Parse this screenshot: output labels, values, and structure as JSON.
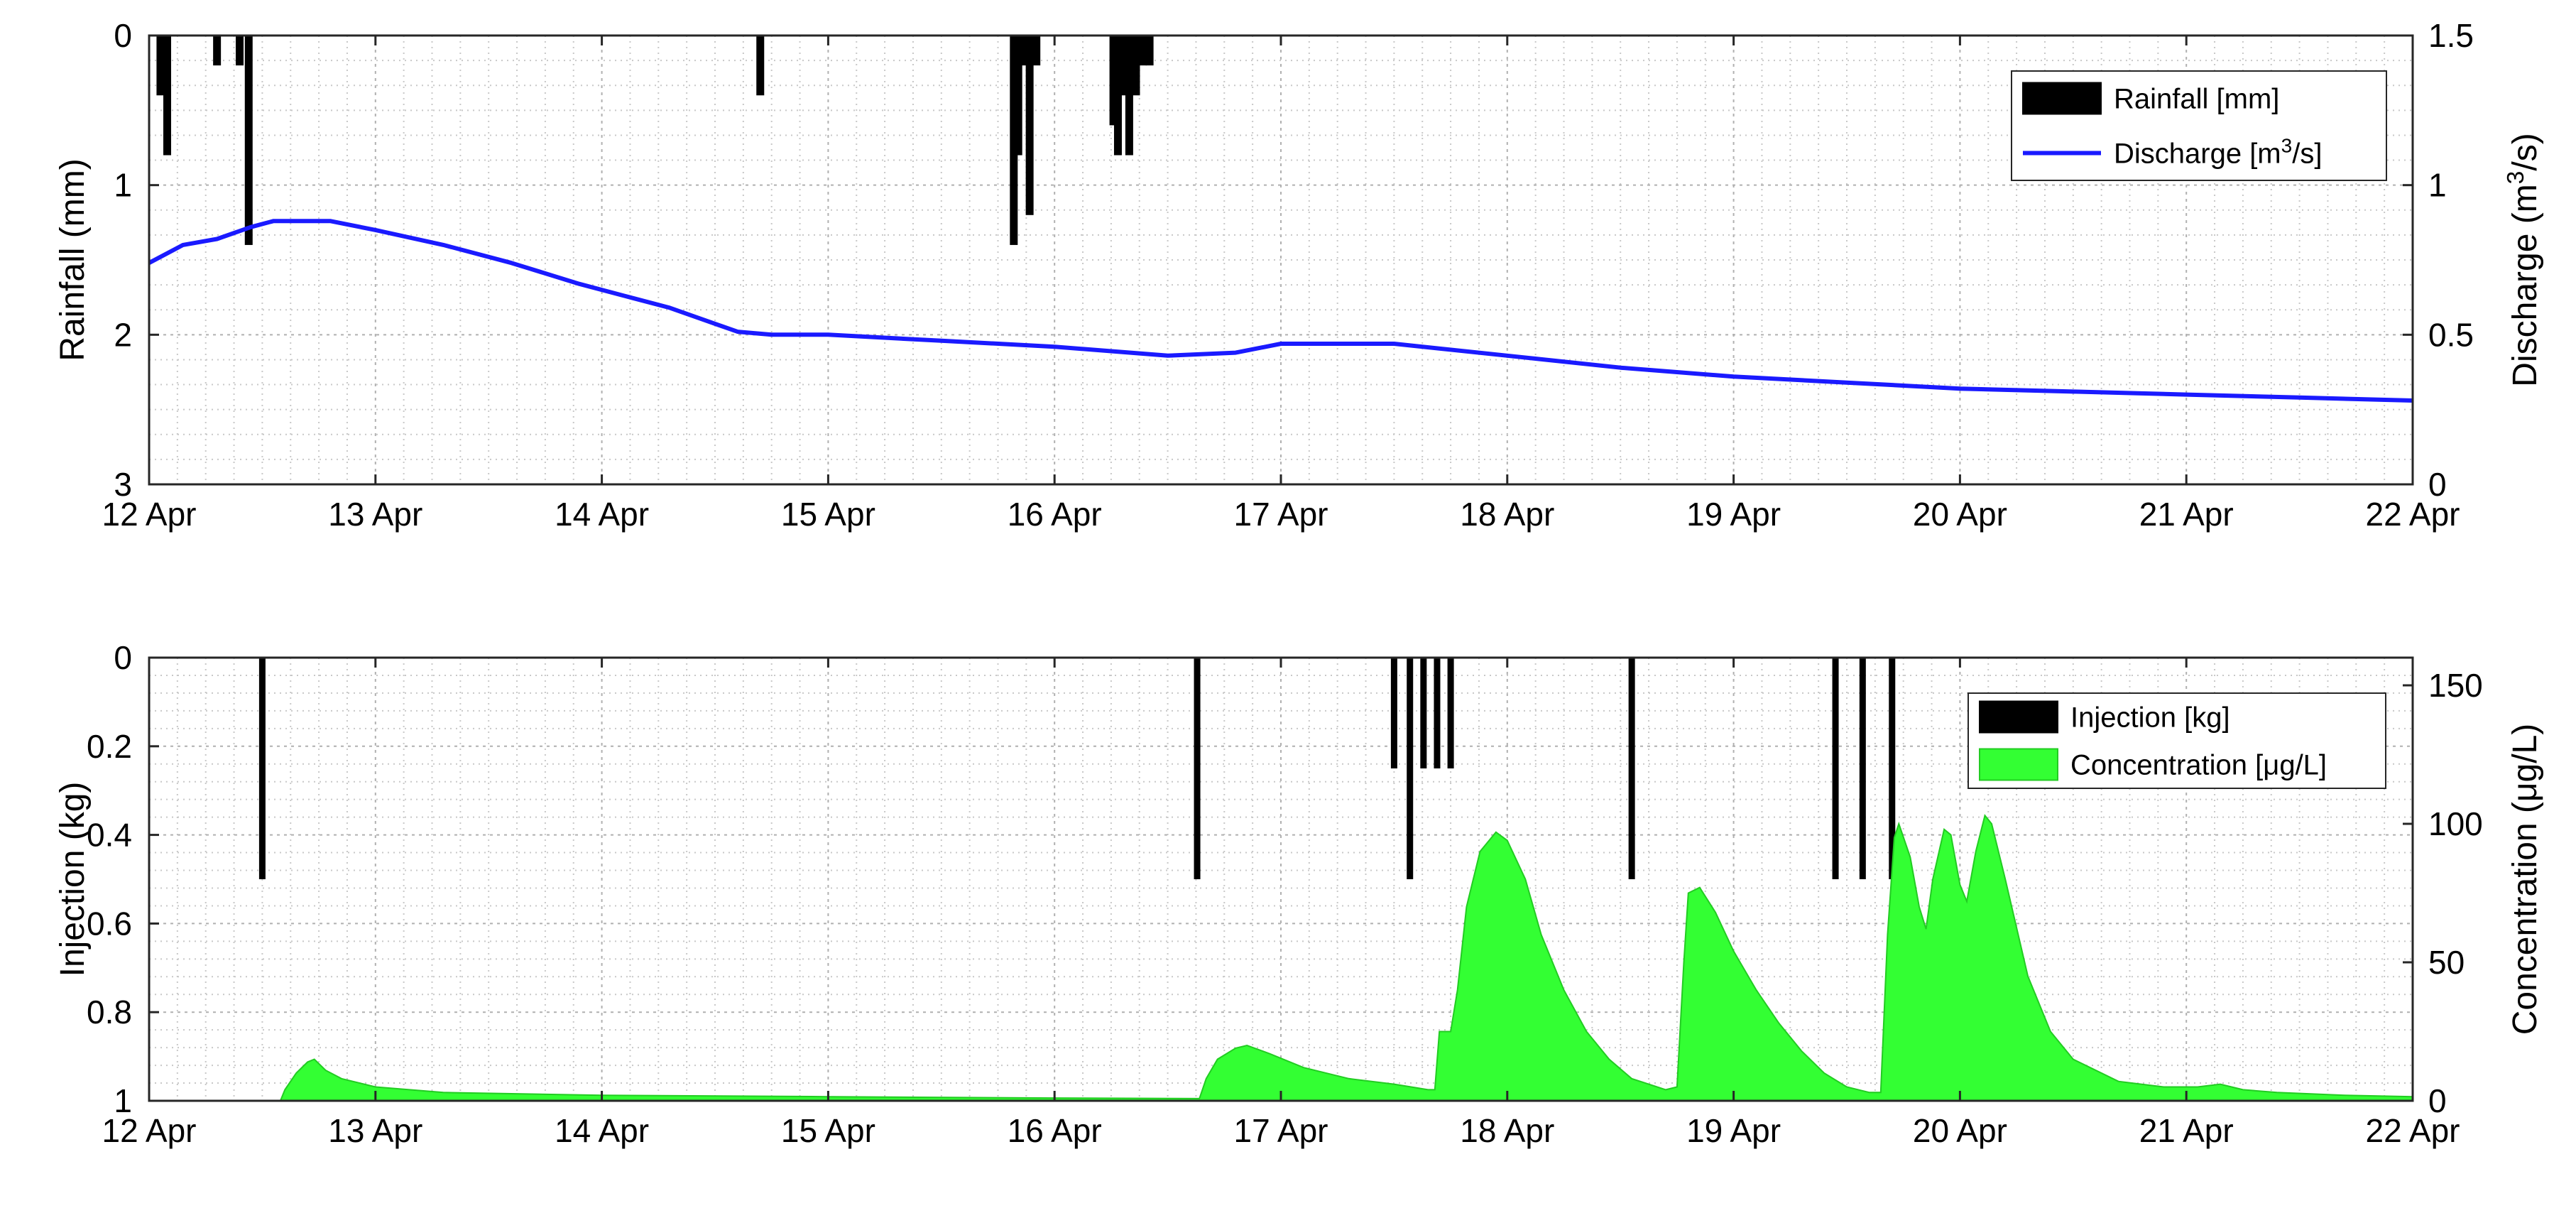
{
  "chart_data": [
    {
      "type": "bar+line",
      "x_ticks": [
        "12 Apr",
        "13 Apr",
        "14 Apr",
        "15 Apr",
        "16 Apr",
        "17 Apr",
        "18 Apr",
        "19 Apr",
        "20 Apr",
        "21 Apr",
        "22 Apr"
      ],
      "xlim": [
        0,
        10
      ],
      "y_left_label": "Rainfall (mm)",
      "y_left_lim": [
        0,
        3
      ],
      "y_left_reversed": true,
      "y_left_ticks": [
        "0",
        "1",
        "2",
        "3"
      ],
      "y_right_label": "Discharge (m³/s)",
      "y_right_label_parts": {
        "prefix": "Discharge (m",
        "sup": "3",
        "suffix": "/s)"
      },
      "y_right_lim": [
        0,
        1.5
      ],
      "y_right_ticks": [
        "0",
        "0.5",
        "1",
        "1.5"
      ],
      "grid": true,
      "legend_position": "top-right",
      "legend": [
        {
          "label": "Rainfall [mm]",
          "color": "#000000",
          "kind": "bar"
        },
        {
          "label": "Discharge [m3/s]",
          "label_parts": {
            "prefix": "Discharge [m",
            "sup": "3",
            "suffix": "/s]"
          },
          "color": "#1a1aff",
          "kind": "line"
        }
      ],
      "series": [
        {
          "name": "Rainfall [mm]",
          "kind": "bar",
          "axis": "left",
          "color": "#000000",
          "points": [
            {
              "x": 0.05,
              "y": 0.4
            },
            {
              "x": 0.08,
              "y": 0.8
            },
            {
              "x": 0.3,
              "y": 0.2
            },
            {
              "x": 0.4,
              "y": 0.2
            },
            {
              "x": 0.44,
              "y": 1.4
            },
            {
              "x": 2.7,
              "y": 0.4
            },
            {
              "x": 3.82,
              "y": 1.4
            },
            {
              "x": 3.84,
              "y": 0.8
            },
            {
              "x": 3.87,
              "y": 0.2
            },
            {
              "x": 3.89,
              "y": 1.2
            },
            {
              "x": 3.92,
              "y": 0.2
            },
            {
              "x": 4.26,
              "y": 0.6
            },
            {
              "x": 4.28,
              "y": 0.8
            },
            {
              "x": 4.3,
              "y": 0.4
            },
            {
              "x": 4.33,
              "y": 0.8
            },
            {
              "x": 4.36,
              "y": 0.4
            },
            {
              "x": 4.39,
              "y": 0.2
            },
            {
              "x": 4.42,
              "y": 0.2
            }
          ]
        },
        {
          "name": "Discharge [m3/s]",
          "kind": "line",
          "axis": "right",
          "color": "#1a1aff",
          "points": [
            [
              0,
              0.74
            ],
            [
              0.15,
              0.8
            ],
            [
              0.3,
              0.82
            ],
            [
              0.45,
              0.86
            ],
            [
              0.55,
              0.88
            ],
            [
              0.8,
              0.88
            ],
            [
              1.0,
              0.85
            ],
            [
              1.3,
              0.8
            ],
            [
              1.6,
              0.74
            ],
            [
              1.9,
              0.67
            ],
            [
              2.1,
              0.63
            ],
            [
              2.3,
              0.59
            ],
            [
              2.45,
              0.55
            ],
            [
              2.6,
              0.51
            ],
            [
              2.75,
              0.5
            ],
            [
              3.0,
              0.5
            ],
            [
              3.5,
              0.48
            ],
            [
              4.0,
              0.46
            ],
            [
              4.5,
              0.43
            ],
            [
              4.8,
              0.44
            ],
            [
              5.0,
              0.47
            ],
            [
              5.5,
              0.47
            ],
            [
              6.0,
              0.43
            ],
            [
              6.5,
              0.39
            ],
            [
              7.0,
              0.36
            ],
            [
              7.5,
              0.34
            ],
            [
              8.0,
              0.32
            ],
            [
              8.5,
              0.31
            ],
            [
              9.0,
              0.3
            ],
            [
              9.5,
              0.29
            ],
            [
              10.0,
              0.28
            ]
          ]
        }
      ]
    },
    {
      "type": "bar+area",
      "x_ticks": [
        "12 Apr",
        "13 Apr",
        "14 Apr",
        "15 Apr",
        "16 Apr",
        "17 Apr",
        "18 Apr",
        "19 Apr",
        "20 Apr",
        "21 Apr",
        "22 Apr"
      ],
      "xlim": [
        0,
        10
      ],
      "y_left_label": "Injection (kg)",
      "y_left_lim": [
        0,
        1
      ],
      "y_left_reversed": true,
      "y_left_ticks": [
        "0",
        "0.2",
        "0.4",
        "0.6",
        "0.8",
        "1"
      ],
      "y_right_label": "Concentration (μg/L)",
      "y_right_lim": [
        0,
        160
      ],
      "y_right_ticks": [
        "0",
        "50",
        "100",
        "150"
      ],
      "grid": true,
      "legend_position": "top-right",
      "legend": [
        {
          "label": "Injection [kg]",
          "color": "#000000",
          "kind": "bar"
        },
        {
          "label": "Concentration [μg/L]",
          "color": "#33ff33",
          "kind": "area"
        }
      ],
      "series": [
        {
          "name": "Injection [kg]",
          "kind": "bar",
          "axis": "left",
          "color": "#000000",
          "points": [
            {
              "x": 0.5,
              "y": 0.5
            },
            {
              "x": 4.63,
              "y": 0.5
            },
            {
              "x": 5.5,
              "y": 0.25
            },
            {
              "x": 5.57,
              "y": 0.5
            },
            {
              "x": 5.63,
              "y": 0.25
            },
            {
              "x": 5.69,
              "y": 0.25
            },
            {
              "x": 5.75,
              "y": 0.25
            },
            {
              "x": 6.55,
              "y": 0.5
            },
            {
              "x": 7.45,
              "y": 0.5
            },
            {
              "x": 7.57,
              "y": 0.5
            },
            {
              "x": 7.7,
              "y": 0.5
            }
          ]
        },
        {
          "name": "Concentration [μg/L]",
          "kind": "area",
          "axis": "right",
          "color": "#33ff33",
          "points": [
            [
              0,
              0
            ],
            [
              0.58,
              0
            ],
            [
              0.6,
              4
            ],
            [
              0.65,
              10
            ],
            [
              0.7,
              14
            ],
            [
              0.73,
              15
            ],
            [
              0.78,
              11
            ],
            [
              0.85,
              8
            ],
            [
              1.0,
              5
            ],
            [
              1.3,
              3
            ],
            [
              2.0,
              2
            ],
            [
              3.0,
              1.5
            ],
            [
              4.0,
              1
            ],
            [
              4.64,
              0.8
            ],
            [
              4.67,
              8
            ],
            [
              4.72,
              15
            ],
            [
              4.8,
              19
            ],
            [
              4.85,
              20
            ],
            [
              4.95,
              17
            ],
            [
              5.1,
              12
            ],
            [
              5.3,
              8
            ],
            [
              5.5,
              6
            ],
            [
              5.65,
              4
            ],
            [
              5.68,
              4
            ],
            [
              5.7,
              25
            ],
            [
              5.75,
              25
            ],
            [
              5.78,
              40
            ],
            [
              5.82,
              70
            ],
            [
              5.88,
              90
            ],
            [
              5.95,
              97
            ],
            [
              6.0,
              94
            ],
            [
              6.08,
              80
            ],
            [
              6.15,
              60
            ],
            [
              6.25,
              40
            ],
            [
              6.35,
              25
            ],
            [
              6.45,
              15
            ],
            [
              6.55,
              8
            ],
            [
              6.7,
              4
            ],
            [
              6.75,
              5
            ],
            [
              6.78,
              50
            ],
            [
              6.8,
              75
            ],
            [
              6.85,
              77
            ],
            [
              6.92,
              68
            ],
            [
              7.0,
              54
            ],
            [
              7.1,
              40
            ],
            [
              7.2,
              28
            ],
            [
              7.3,
              18
            ],
            [
              7.4,
              10
            ],
            [
              7.5,
              5
            ],
            [
              7.6,
              3
            ],
            [
              7.65,
              3
            ],
            [
              7.68,
              60
            ],
            [
              7.71,
              95
            ],
            [
              7.73,
              100
            ],
            [
              7.78,
              88
            ],
            [
              7.82,
              70
            ],
            [
              7.85,
              62
            ],
            [
              7.88,
              80
            ],
            [
              7.93,
              98
            ],
            [
              7.96,
              96
            ],
            [
              8.0,
              78
            ],
            [
              8.03,
              72
            ],
            [
              8.07,
              90
            ],
            [
              8.11,
              103
            ],
            [
              8.14,
              100
            ],
            [
              8.2,
              80
            ],
            [
              8.3,
              45
            ],
            [
              8.4,
              25
            ],
            [
              8.5,
              15
            ],
            [
              8.7,
              7
            ],
            [
              8.9,
              5
            ],
            [
              9.05,
              5
            ],
            [
              9.15,
              6
            ],
            [
              9.25,
              4
            ],
            [
              9.4,
              3
            ],
            [
              9.7,
              2
            ],
            [
              10.0,
              1.5
            ]
          ]
        }
      ]
    }
  ]
}
